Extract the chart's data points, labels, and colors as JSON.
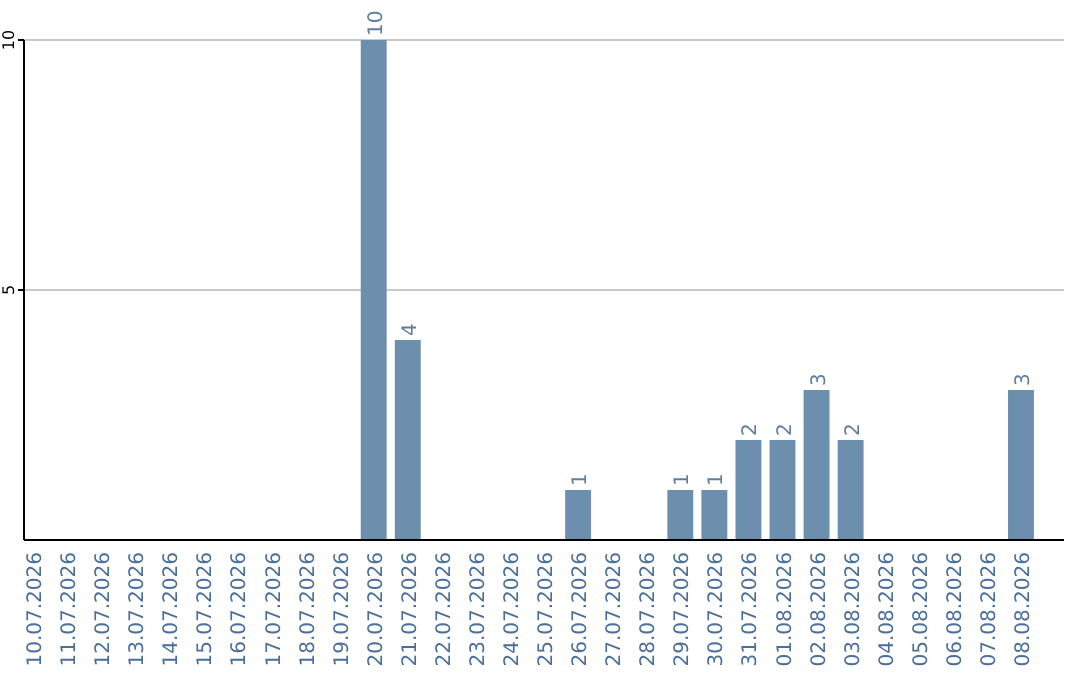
{
  "chart_data": {
    "type": "bar",
    "categories": [
      "10.07.2026",
      "11.07.2026",
      "12.07.2026",
      "13.07.2026",
      "14.07.2026",
      "15.07.2026",
      "16.07.2026",
      "17.07.2026",
      "18.07.2026",
      "19.07.2026",
      "20.07.2026",
      "21.07.2026",
      "22.07.2026",
      "23.07.2026",
      "24.07.2026",
      "25.07.2026",
      "26.07.2026",
      "27.07.2026",
      "28.07.2026",
      "29.07.2026",
      "30.07.2026",
      "31.07.2026",
      "01.08.2026",
      "02.08.2026",
      "03.08.2026",
      "04.08.2026",
      "05.08.2026",
      "06.08.2026",
      "07.08.2026",
      "08.08.2026"
    ],
    "values": [
      0,
      0,
      0,
      0,
      0,
      0,
      0,
      0,
      0,
      0,
      10,
      4,
      0,
      0,
      0,
      0,
      1,
      0,
      0,
      1,
      1,
      2,
      2,
      3,
      2,
      0,
      0,
      0,
      0,
      3
    ],
    "value_labels": [
      null,
      null,
      null,
      null,
      null,
      null,
      null,
      null,
      null,
      null,
      "10",
      "4",
      null,
      null,
      null,
      null,
      "1",
      null,
      null,
      "1",
      "1",
      "2",
      "2",
      "3",
      "2",
      null,
      null,
      null,
      null,
      "3"
    ],
    "color": "#6d8fae",
    "ylim": [
      0,
      10
    ],
    "yticks": [
      5,
      10
    ],
    "grid": "y"
  }
}
